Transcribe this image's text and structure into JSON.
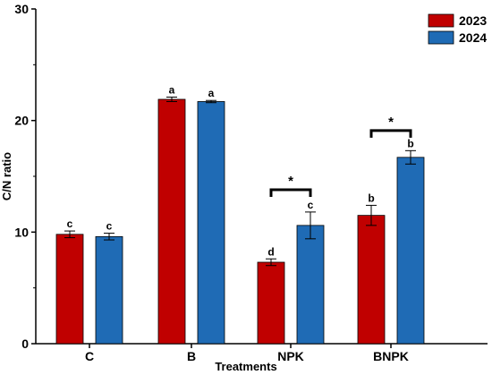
{
  "chart_data": {
    "type": "bar",
    "xlabel": "Treatments",
    "ylabel": "C/N ratio",
    "ylim": [
      0,
      30
    ],
    "yticks": [
      0,
      10,
      20,
      30
    ],
    "categories": [
      "C",
      "B",
      "NPK",
      "BNPK"
    ],
    "series": [
      {
        "name": "2023",
        "color": "#c00000",
        "values": [
          9.8,
          21.9,
          7.3,
          11.5
        ],
        "errors": [
          0.3,
          0.2,
          0.3,
          0.9
        ],
        "letters": [
          "c",
          "a",
          "d",
          "b"
        ]
      },
      {
        "name": "2024",
        "color": "#1f6bb5",
        "values": [
          9.6,
          21.7,
          10.6,
          16.7
        ],
        "errors": [
          0.3,
          0.1,
          1.2,
          0.6
        ],
        "letters": [
          "c",
          "a",
          "c",
          "b"
        ]
      }
    ],
    "significance": [
      {
        "category": "NPK",
        "label": "*",
        "level": 13.8
      },
      {
        "category": "BNPK",
        "label": "*",
        "level": 19.1
      }
    ],
    "legend": {
      "position": "top-right"
    },
    "grid": false
  }
}
